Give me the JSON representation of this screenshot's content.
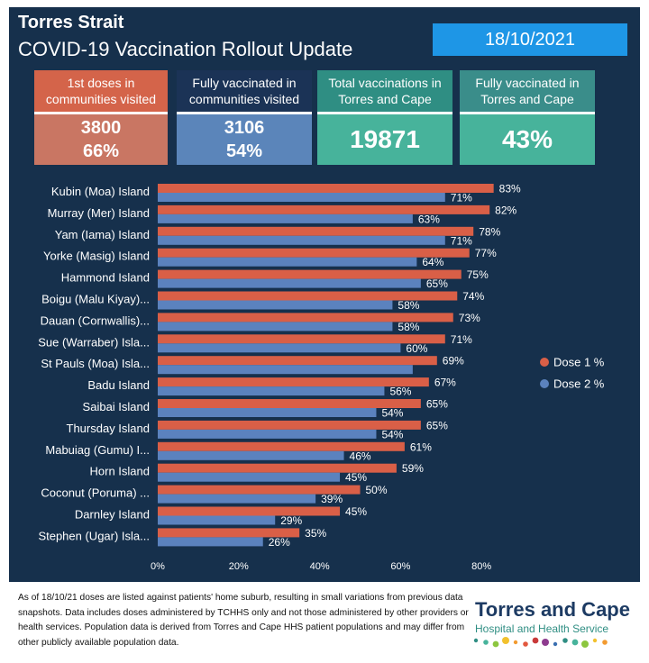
{
  "header": {
    "title": "Torres Strait",
    "subtitle": "COVID-19 Vaccination Rollout Update",
    "date": "18/10/2021"
  },
  "cards": [
    {
      "label": "1st doses in communities visited",
      "values": [
        "3800",
        "66%"
      ],
      "head_color": "#d4644a",
      "body_color": "#c97663"
    },
    {
      "label": "Fully vaccinated in communities visited",
      "values": [
        "3106",
        "54%"
      ],
      "head_color": "#1b3356",
      "body_color": "#5b85ba"
    },
    {
      "label": "Total vaccinations in Torres and Cape",
      "values": [
        "19871"
      ],
      "head_color": "#2f8e83",
      "body_color": "#47b39b"
    },
    {
      "label": "Fully vaccinated in Torres and Cape",
      "values": [
        "43%"
      ],
      "head_color": "#3a8d8a",
      "body_color": "#47b39b"
    }
  ],
  "chart_data": {
    "type": "bar",
    "orientation": "horizontal",
    "categories": [
      "Kubin (Moa) Island",
      "Murray (Mer) Island",
      "Yam (Iama) Island",
      "Yorke (Masig) Island",
      "Hammond Island",
      "Boigu (Malu Kiyay)...",
      "Dauan (Cornwallis)...",
      "Sue (Warraber) Isla...",
      "St Pauls (Moa) Isla...",
      "Badu Island",
      "Saibai Island",
      "Thursday Island",
      "Mabuiag (Gumu) I...",
      "Horn Island",
      "Coconut (Poruma) ...",
      "Darnley Island",
      "Stephen (Ugar) Isla..."
    ],
    "series": [
      {
        "name": "Dose 1 %",
        "color": "#d95f47",
        "values": [
          83,
          82,
          78,
          77,
          75,
          74,
          73,
          71,
          69,
          67,
          65,
          65,
          61,
          59,
          50,
          45,
          35
        ],
        "labels": [
          "83%",
          "82%",
          "78%",
          "77%",
          "75%",
          "74%",
          "73%",
          "71%",
          "69%",
          "67%",
          "65%",
          "65%",
          "61%",
          "59%",
          "50%",
          "45%",
          "35%"
        ]
      },
      {
        "name": "Dose 2 %",
        "color": "#5b82be",
        "values": [
          71,
          63,
          71,
          64,
          65,
          58,
          58,
          60,
          63,
          56,
          54,
          54,
          46,
          45,
          39,
          29,
          26
        ],
        "labels": [
          "71%",
          "63%",
          "71%",
          "64%",
          "65%",
          "58%",
          "58%",
          "60%",
          "",
          "56%",
          "54%",
          "54%",
          "46%",
          "45%",
          "39%",
          "29%",
          "26%"
        ]
      }
    ],
    "xlim": [
      0,
      90
    ],
    "xticks": [
      "0%",
      "20%",
      "40%",
      "60%",
      "80%"
    ],
    "xtick_values": [
      0,
      20,
      40,
      60,
      80
    ],
    "legend_position": "right",
    "grid": false
  },
  "footnote": "As of 18/10/21 doses are listed against patients' home suburb, resulting in small variations from previous data snapshots. Data includes doses administered by TCHHS only and not those administered by other providers or health services. Population data is derived from Torres and Cape HHS patient populations and may differ from other publicly available population data.",
  "logo": {
    "name": "Torres and Cape",
    "sub": "Hospital and Health Service",
    "dot_colors": [
      "#2f8e83",
      "#47b39b",
      "#8cc63f",
      "#f2c12e",
      "#f29b30",
      "#e2583e",
      "#c93a3a",
      "#8e3b8f",
      "#3a6fb0",
      "#2f8e83",
      "#47b39b",
      "#8cc63f",
      "#f2c12e",
      "#f29b30"
    ]
  }
}
